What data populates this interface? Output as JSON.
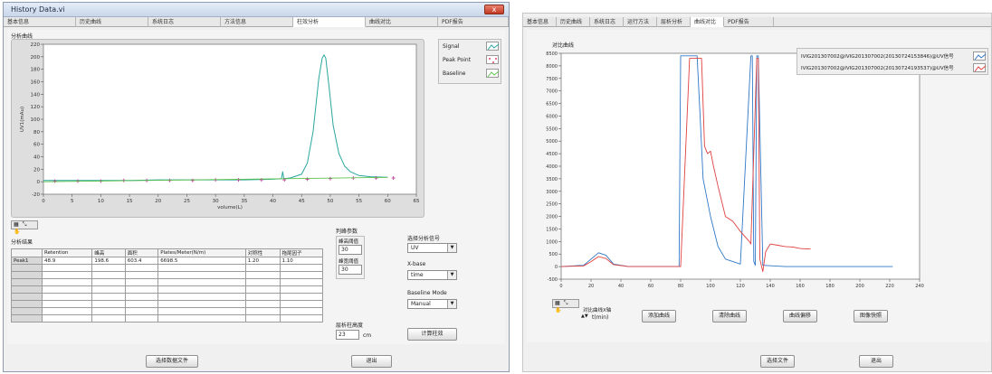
{
  "window1": {
    "title": "History Data.vi",
    "close_glyph": "x",
    "tabs": [
      "基本信息",
      "历史曲线",
      "系统日志",
      "方法信息",
      "柱效分析",
      "曲线对比",
      "PDF报告"
    ],
    "active_tab": 4,
    "plot_label": "分析曲线",
    "ylabel": "UV1(mAu)",
    "xlabel": "volume(L)",
    "legend": [
      "Signal",
      "Peak Point",
      "Baseline"
    ],
    "results_label": "分析结果",
    "table": {
      "headers": [
        "",
        "Retention",
        "峰高",
        "面积",
        "Plates/Meter(N/m)",
        "对称性",
        "拖尾因子"
      ],
      "rows": [
        [
          "Peak1",
          "48.9",
          "198.6",
          "603.4",
          "6698.5",
          "1.20",
          "1.10"
        ]
      ]
    },
    "params_label": "判峰参数",
    "peak_threshold_label": "峰高阈值",
    "peak_threshold_value": "30",
    "width_threshold_label": "峰宽阈值",
    "width_threshold_value": "30",
    "signal_select_label": "选择分析信号",
    "signal_select_value": "UV",
    "xbase_label": "X-base",
    "xbase_value": "time",
    "baseline_mode_label": "Baseline Mode",
    "baseline_mode_value": "Manual",
    "column_height_label": "层析柱高度",
    "column_height_value": "23",
    "column_height_unit": "cm",
    "compute_button": "计算柱效",
    "select_file_button": "选择数据文件",
    "exit_button": "退出",
    "dropdown_glyph": "▼",
    "tool_glyphs": "▦ ⤡ ✋"
  },
  "window2": {
    "tabs": [
      "基本信息",
      "历史曲线",
      "系统日志",
      "运行方法",
      "层析分析",
      "曲线对比",
      "PDF报告"
    ],
    "active_tab": 5,
    "plot_label": "对比曲线",
    "xlabel": "t(min)",
    "legend": [
      "IVIG201307002@IVIG201307002(20130724153846)@UV信号",
      "IVIG201307002@IVIG201307002(20130724193537)@UV信号"
    ],
    "xaxis_control_label": "对比曲线X轴",
    "xaxis_control_value": "t(min)",
    "add_curve_button": "添加曲线",
    "clear_curve_button": "清除曲线",
    "shift_curve_button": "曲线偏移",
    "snapshot_button": "图像快照",
    "select_file_button": "选择文件",
    "exit_button": "退出",
    "tool_glyphs": "▦ ⤡ ✋"
  },
  "colors": {
    "signal": "#1f5fa8",
    "signal2": "#2aa6a0",
    "baseline": "#5ec24a",
    "peak_point": "#c03d9a",
    "curve_red": "#e04040",
    "curve_blue": "#2f78c8"
  },
  "chart_data": [
    {
      "type": "line",
      "title": "",
      "xlabel": "volume(L)",
      "ylabel": "UV1(mAu)",
      "xlim": [
        0,
        65
      ],
      "ylim": [
        -20,
        220
      ],
      "xticks": [
        0,
        5,
        10,
        15,
        20,
        25,
        30,
        35,
        40,
        45,
        50,
        55,
        60,
        65
      ],
      "yticks": [
        -20,
        0,
        20,
        40,
        60,
        80,
        100,
        120,
        140,
        160,
        180,
        200,
        220
      ],
      "legend_position": "top-right",
      "series": [
        {
          "name": "Signal",
          "x": [
            0,
            5,
            10,
            15,
            20,
            25,
            30,
            35,
            40,
            41.5,
            41.7,
            41.9,
            43,
            45,
            46,
            47,
            48,
            48.6,
            48.9,
            49.2,
            49.8,
            50.5,
            51.5,
            52.5,
            53.5,
            55,
            57,
            60
          ],
          "y": [
            2,
            2,
            2,
            2,
            3,
            3,
            3,
            3,
            4,
            5,
            16,
            5,
            6,
            12,
            30,
            80,
            165,
            198,
            203,
            198,
            150,
            90,
            45,
            25,
            16,
            10,
            8,
            7
          ]
        },
        {
          "name": "Peak Point",
          "x": [
            2,
            6,
            10,
            14,
            18,
            22,
            26,
            30,
            34,
            38,
            42,
            46,
            50,
            54,
            58,
            61
          ],
          "y": [
            1,
            1,
            1,
            2,
            2,
            2,
            2,
            3,
            3,
            3,
            3,
            4,
            5,
            6,
            6,
            6
          ]
        },
        {
          "name": "Baseline",
          "x": [
            0,
            60
          ],
          "y": [
            0,
            7
          ]
        }
      ]
    },
    {
      "type": "line",
      "title": "",
      "xlabel": "t(min)",
      "ylabel": "",
      "xlim": [
        0,
        240
      ],
      "ylim": [
        -500,
        8500
      ],
      "xticks": [
        0,
        20,
        40,
        60,
        80,
        100,
        120,
        140,
        160,
        180,
        200,
        220,
        240
      ],
      "yticks": [
        -500,
        0,
        500,
        1000,
        1500,
        2000,
        2500,
        3000,
        3500,
        4000,
        4500,
        5000,
        5500,
        6000,
        6500,
        7000,
        7500,
        8000,
        8500
      ],
      "legend_position": "top-right",
      "series": [
        {
          "name": "IVIG201307002@IVIG201307002(20130724153846)@UV信号",
          "x": [
            0,
            15,
            20,
            25,
            30,
            35,
            45,
            75,
            79,
            80,
            90,
            91,
            93,
            95,
            100,
            105,
            110,
            120,
            127,
            128,
            129,
            130,
            131,
            132,
            135,
            150,
            200,
            222
          ],
          "y": [
            0,
            50,
            300,
            550,
            450,
            100,
            0,
            0,
            0,
            8400,
            8400,
            8400,
            6000,
            3500,
            2000,
            800,
            300,
            100,
            8400,
            8400,
            200,
            50,
            8400,
            8400,
            50,
            0,
            0,
            0
          ]
        },
        {
          "name": "IVIG201307002@IVIG201307002(20130724193537)@UV信号",
          "x": [
            0,
            15,
            20,
            25,
            30,
            35,
            45,
            80,
            86,
            87,
            94,
            96,
            98,
            100,
            102,
            105,
            110,
            115,
            120,
            126,
            127,
            131,
            132,
            133,
            135,
            137,
            140,
            145,
            150,
            155,
            160,
            167
          ],
          "y": [
            0,
            30,
            200,
            400,
            320,
            80,
            0,
            0,
            8300,
            8300,
            8300,
            4800,
            4500,
            4600,
            4000,
            3200,
            2000,
            1800,
            1400,
            1000,
            900,
            8300,
            8300,
            300,
            -200,
            600,
            900,
            850,
            800,
            780,
            720,
            700
          ]
        }
      ]
    }
  ]
}
